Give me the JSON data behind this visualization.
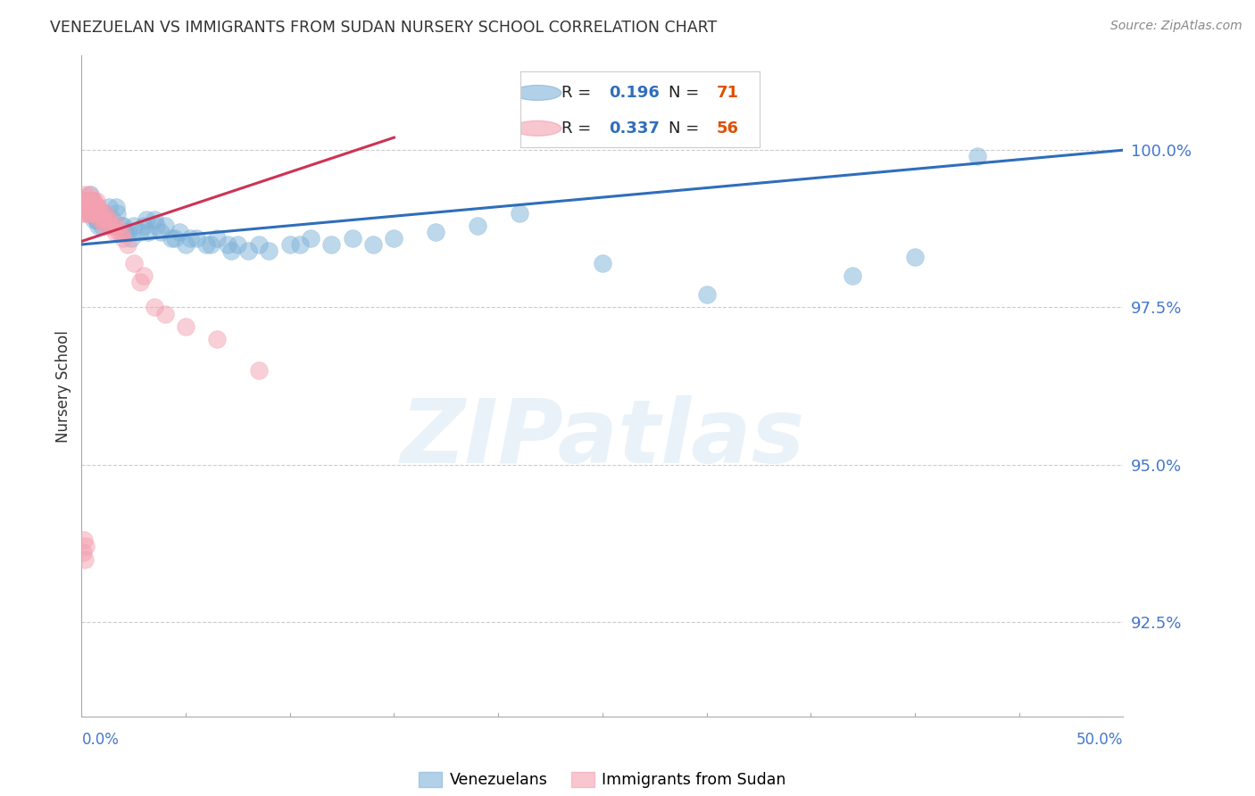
{
  "title": "VENEZUELAN VS IMMIGRANTS FROM SUDAN NURSERY SCHOOL CORRELATION CHART",
  "source": "Source: ZipAtlas.com",
  "ylabel": "Nursery School",
  "right_yticks": [
    92.5,
    95.0,
    97.5,
    100.0
  ],
  "x_min": 0.0,
  "x_max": 50.0,
  "y_min": 91.0,
  "y_max": 101.5,
  "blue_color": "#7FB3D9",
  "pink_color": "#F4A0B0",
  "blue_line_color": "#2F6EBA",
  "pink_line_color": "#CC3355",
  "legend_label_blue": "Venezuelans",
  "legend_label_pink": "Immigrants from Sudan",
  "watermark": "ZIPatlas",
  "title_color": "#333333",
  "axis_label_color": "#4477CC",
  "orange_color": "#E05000",
  "grid_color": "#cccccc",
  "background_color": "#ffffff",
  "blue_scatter_x": [
    0.2,
    0.3,
    0.35,
    0.4,
    0.45,
    0.5,
    0.55,
    0.6,
    0.65,
    0.7,
    0.75,
    0.8,
    0.85,
    0.9,
    0.95,
    1.0,
    1.1,
    1.2,
    1.3,
    1.5,
    1.7,
    1.9,
    2.0,
    2.2,
    2.5,
    2.8,
    3.0,
    3.2,
    3.5,
    3.8,
    4.0,
    4.3,
    4.7,
    5.0,
    5.5,
    6.0,
    6.5,
    7.0,
    7.5,
    8.0,
    8.5,
    9.0,
    10.0,
    11.0,
    12.0,
    13.0,
    14.0,
    15.0,
    17.0,
    19.0,
    21.0,
    25.0,
    30.0,
    37.0,
    40.0,
    43.0,
    0.25,
    0.55,
    0.75,
    1.05,
    1.35,
    1.65,
    2.1,
    2.4,
    3.1,
    3.6,
    4.5,
    5.2,
    6.2,
    7.2,
    10.5
  ],
  "blue_scatter_y": [
    99.1,
    99.2,
    99.0,
    99.3,
    99.1,
    99.2,
    99.0,
    98.9,
    99.1,
    98.9,
    99.0,
    98.8,
    99.0,
    98.9,
    98.8,
    98.9,
    99.0,
    98.9,
    99.1,
    98.9,
    99.0,
    98.8,
    98.8,
    98.7,
    98.8,
    98.7,
    98.8,
    98.7,
    98.9,
    98.7,
    98.8,
    98.6,
    98.7,
    98.5,
    98.6,
    98.5,
    98.6,
    98.5,
    98.5,
    98.4,
    98.5,
    98.4,
    98.5,
    98.6,
    98.5,
    98.6,
    98.5,
    98.6,
    98.7,
    98.8,
    99.0,
    98.2,
    97.7,
    98.0,
    98.3,
    99.9,
    99.2,
    99.0,
    98.9,
    99.0,
    98.8,
    99.1,
    98.7,
    98.6,
    98.9,
    98.8,
    98.6,
    98.6,
    98.5,
    98.4,
    98.5
  ],
  "pink_scatter_x": [
    0.05,
    0.08,
    0.1,
    0.12,
    0.15,
    0.18,
    0.2,
    0.22,
    0.25,
    0.28,
    0.3,
    0.32,
    0.35,
    0.38,
    0.4,
    0.42,
    0.45,
    0.48,
    0.5,
    0.52,
    0.55,
    0.58,
    0.6,
    0.62,
    0.65,
    0.68,
    0.7,
    0.72,
    0.75,
    0.78,
    0.8,
    0.85,
    0.9,
    0.95,
    1.0,
    1.05,
    1.1,
    1.15,
    1.2,
    1.3,
    1.4,
    1.5,
    1.6,
    1.7,
    1.8,
    1.9,
    2.0,
    2.2,
    2.5,
    2.8,
    3.0,
    3.5,
    4.0,
    5.0,
    6.5,
    8.5
  ],
  "pink_scatter_y": [
    99.1,
    99.0,
    99.2,
    99.1,
    99.3,
    99.2,
    99.1,
    99.0,
    99.2,
    99.1,
    99.0,
    99.2,
    99.1,
    99.3,
    99.2,
    99.1,
    99.0,
    99.2,
    99.1,
    99.0,
    99.1,
    99.2,
    99.0,
    99.1,
    99.0,
    99.1,
    99.2,
    99.0,
    99.1,
    99.0,
    99.1,
    98.9,
    99.0,
    98.9,
    99.0,
    98.9,
    98.8,
    99.0,
    98.9,
    98.9,
    98.8,
    98.8,
    98.7,
    98.8,
    98.7,
    98.7,
    98.6,
    98.5,
    98.2,
    97.9,
    98.0,
    97.5,
    97.4,
    97.2,
    97.0,
    96.5
  ],
  "pink_extra_low_x": [
    0.05,
    0.08,
    0.1,
    0.12,
    0.15,
    0.18,
    0.2
  ],
  "pink_extra_low_y": [
    93.6,
    93.8,
    94.0,
    93.5,
    93.7,
    94.1,
    93.9
  ]
}
